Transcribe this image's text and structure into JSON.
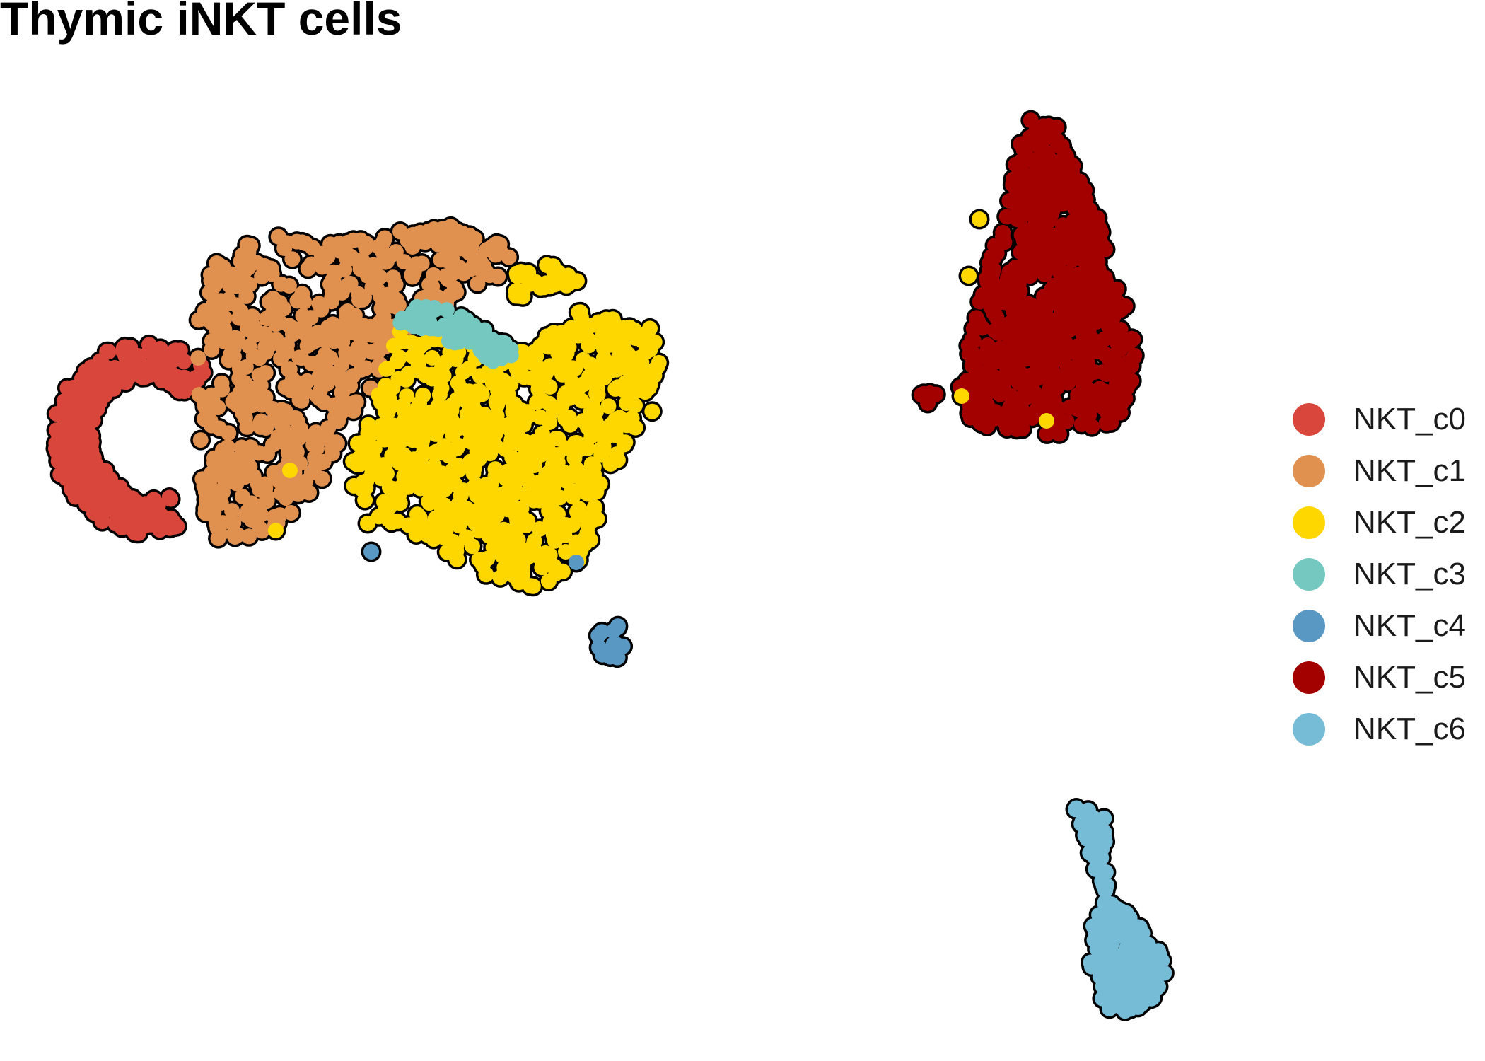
{
  "chart_data": {
    "type": "scatter",
    "title": "Thymic iNKT cells",
    "xlabel": "",
    "ylabel": "",
    "axes_visible": false,
    "grid": false,
    "legend_position": "right",
    "point_style": "filled circles with black outline",
    "series": [
      {
        "name": "NKT_c0",
        "color": "#D9463B"
      },
      {
        "name": "NKT_c1",
        "color": "#E0904F"
      },
      {
        "name": "NKT_c2",
        "color": "#FFD700"
      },
      {
        "name": "NKT_c3",
        "color": "#74C8C0"
      },
      {
        "name": "NKT_c4",
        "color": "#5898C2"
      },
      {
        "name": "NKT_c5",
        "color": "#A30000"
      },
      {
        "name": "NKT_c6",
        "color": "#77BCD6"
      }
    ]
  }
}
